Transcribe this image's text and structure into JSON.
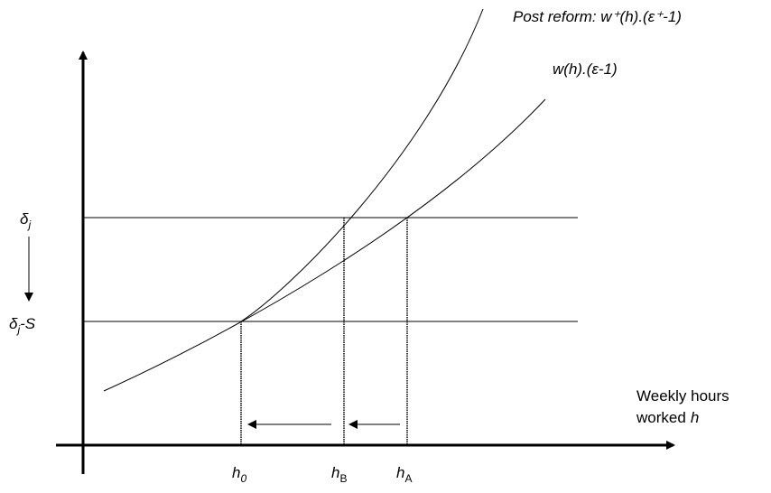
{
  "curves": [
    {
      "label": "Post reform: w⁺(h).(ε⁺-1)"
    },
    {
      "label": "w(h).(ε-1)"
    }
  ],
  "y_labels": [
    {
      "base": "δ",
      "sub": "j"
    },
    {
      "base": "δ",
      "sub": "j",
      "suffix": "-S"
    }
  ],
  "x_labels": [
    {
      "base": "h",
      "sub": "0"
    },
    {
      "base": "h",
      "sub": "B"
    },
    {
      "base": "h",
      "sub": "A"
    }
  ],
  "x_axis_label": {
    "line1": "Weekly hours",
    "line2": "worked",
    "var": "h"
  }
}
